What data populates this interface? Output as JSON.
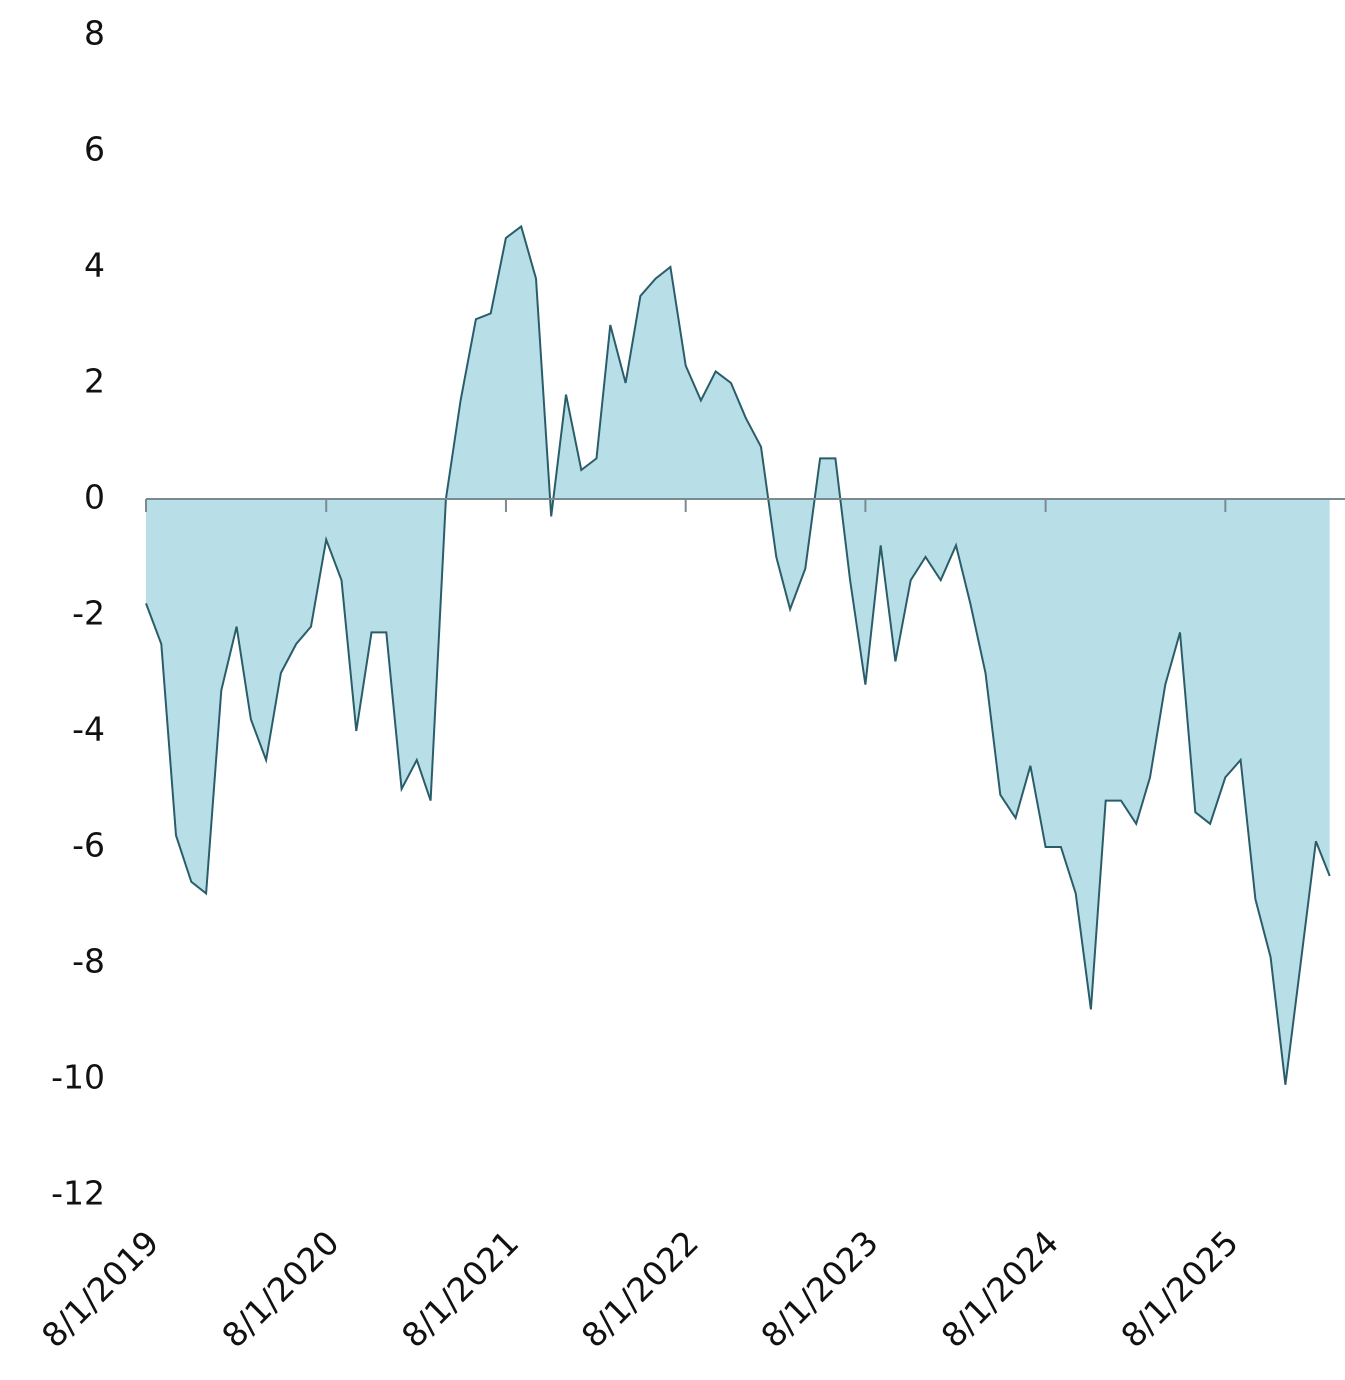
{
  "chart_data": {
    "type": "area",
    "x": [
      "8/1/2019",
      "9/1/2019",
      "10/1/2019",
      "11/1/2019",
      "12/1/2019",
      "1/1/2020",
      "2/1/2020",
      "3/1/2020",
      "4/1/2020",
      "5/1/2020",
      "6/1/2020",
      "7/1/2020",
      "8/1/2020",
      "9/1/2020",
      "10/1/2020",
      "11/1/2020",
      "12/1/2020",
      "1/1/2021",
      "2/1/2021",
      "3/1/2021",
      "4/1/2021",
      "5/1/2021",
      "6/1/2021",
      "7/1/2021",
      "8/1/2021",
      "9/1/2021",
      "10/1/2021",
      "11/1/2021",
      "12/1/2021",
      "1/1/2022",
      "2/1/2022",
      "3/1/2022",
      "4/1/2022",
      "5/1/2022",
      "6/1/2022",
      "7/1/2022",
      "8/1/2022",
      "9/1/2022",
      "10/1/2022",
      "11/1/2022",
      "12/1/2022",
      "1/1/2023",
      "2/1/2023",
      "3/1/2023",
      "4/1/2023",
      "5/1/2023",
      "6/1/2023",
      "7/1/2023",
      "8/1/2023",
      "9/1/2023",
      "10/1/2023",
      "11/1/2023",
      "12/1/2023",
      "1/1/2024",
      "2/1/2024",
      "3/1/2024",
      "4/1/2024",
      "5/1/2024",
      "6/1/2024",
      "7/1/2024",
      "8/1/2024",
      "9/1/2024",
      "10/1/2024",
      "11/1/2024",
      "12/1/2024",
      "1/1/2025",
      "2/1/2025",
      "3/1/2025",
      "4/1/2025",
      "5/1/2025",
      "6/1/2025",
      "7/1/2025",
      "8/1/2025",
      "9/1/2025",
      "10/1/2025",
      "11/1/2025",
      "12/1/2025",
      "1/1/2026",
      "2/1/2026",
      "3/1/2026"
    ],
    "values": [
      -1.8,
      -2.5,
      -5.8,
      -6.6,
      -6.8,
      -3.3,
      -2.2,
      -3.8,
      -4.5,
      -3.0,
      -2.5,
      -2.2,
      -0.7,
      -1.4,
      -4.0,
      -2.3,
      -2.3,
      -5.0,
      -4.5,
      -5.2,
      0.0,
      1.7,
      3.1,
      3.2,
      4.5,
      4.7,
      3.8,
      -0.3,
      1.8,
      0.5,
      0.7,
      3.0,
      2.0,
      3.5,
      3.8,
      4.0,
      2.3,
      1.7,
      2.2,
      2.0,
      1.4,
      0.9,
      -1.0,
      -1.9,
      -1.2,
      0.7,
      0.7,
      -1.4,
      -3.2,
      -0.8,
      -2.8,
      -1.4,
      -1.0,
      -1.4,
      -0.8,
      -1.8,
      -3.0,
      -5.1,
      -5.5,
      -4.6,
      -6.0,
      -6.0,
      -6.8,
      -8.8,
      -5.2,
      -5.2,
      -5.6,
      -4.8,
      -3.2,
      -2.3,
      -5.4,
      -5.6,
      -4.8,
      -4.5,
      -6.9,
      -7.9,
      -10.1,
      -8.0,
      -5.9,
      -6.5
    ],
    "fill": "#b8dfe8",
    "line_color": "#2a5d6a",
    "xlim": [
      "8/1/2019",
      "4/1/2026"
    ],
    "xticks": [
      "8/1/2019",
      "8/1/2020",
      "8/1/2021",
      "8/1/2022",
      "8/1/2023",
      "8/1/2024",
      "8/1/2025"
    ],
    "ylim": [
      -12,
      8
    ],
    "yticks": [
      -12,
      -10,
      -8,
      -6,
      -4,
      -2,
      0,
      2,
      4,
      6,
      8
    ]
  }
}
